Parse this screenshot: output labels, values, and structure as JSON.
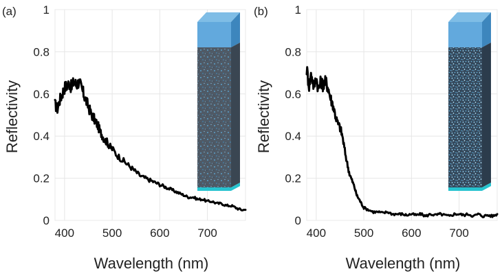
{
  "chart_data": [
    {
      "type": "line",
      "panel_label": "(a)",
      "xlabel": "Wavelength (nm)",
      "ylabel": "Reflectivity",
      "xlim": [
        380,
        780
      ],
      "ylim": [
        0,
        1
      ],
      "xticks": [
        "400",
        "500",
        "600",
        "700"
      ],
      "yticks": [
        "0",
        "0.2",
        "0.4",
        "0.6",
        "0.8",
        "1"
      ],
      "grid": true,
      "inset": "sparse-nanostructured-column",
      "series": [
        {
          "name": "reflectivity",
          "x": [
            380,
            385,
            390,
            395,
            400,
            405,
            410,
            415,
            420,
            425,
            430,
            435,
            440,
            445,
            450,
            455,
            460,
            465,
            470,
            475,
            480,
            485,
            490,
            495,
            500,
            510,
            520,
            530,
            540,
            550,
            560,
            570,
            580,
            590,
            600,
            610,
            620,
            630,
            640,
            650,
            660,
            670,
            680,
            690,
            700,
            710,
            720,
            730,
            740,
            750,
            760,
            770,
            780
          ],
          "y": [
            0.55,
            0.53,
            0.57,
            0.6,
            0.63,
            0.64,
            0.65,
            0.63,
            0.66,
            0.64,
            0.66,
            0.63,
            0.6,
            0.57,
            0.54,
            0.51,
            0.49,
            0.47,
            0.45,
            0.42,
            0.4,
            0.38,
            0.37,
            0.35,
            0.34,
            0.31,
            0.29,
            0.27,
            0.25,
            0.23,
            0.21,
            0.2,
            0.19,
            0.18,
            0.17,
            0.16,
            0.15,
            0.14,
            0.13,
            0.12,
            0.11,
            0.11,
            0.1,
            0.1,
            0.09,
            0.09,
            0.08,
            0.08,
            0.07,
            0.07,
            0.06,
            0.05,
            0.05
          ]
        }
      ]
    },
    {
      "type": "line",
      "panel_label": "(b)",
      "xlabel": "Wavelength (nm)",
      "ylabel": "Reflectivity",
      "xlim": [
        380,
        780
      ],
      "ylim": [
        0,
        1
      ],
      "xticks": [
        "400",
        "500",
        "600",
        "700"
      ],
      "yticks": [
        "0",
        "0.2",
        "0.4",
        "0.6",
        "0.8",
        "1"
      ],
      "grid": true,
      "inset": "dense-nanostructured-column",
      "series": [
        {
          "name": "reflectivity",
          "x": [
            380,
            385,
            390,
            395,
            400,
            405,
            410,
            415,
            420,
            425,
            430,
            435,
            440,
            445,
            450,
            455,
            460,
            465,
            470,
            475,
            480,
            485,
            490,
            495,
            500,
            510,
            520,
            530,
            540,
            550,
            560,
            570,
            580,
            590,
            600,
            610,
            620,
            630,
            640,
            650,
            660,
            670,
            680,
            690,
            700,
            710,
            720,
            730,
            740,
            750,
            760,
            770,
            780
          ],
          "y": [
            0.72,
            0.64,
            0.7,
            0.63,
            0.68,
            0.62,
            0.66,
            0.64,
            0.66,
            0.63,
            0.58,
            0.55,
            0.5,
            0.46,
            0.44,
            0.4,
            0.33,
            0.27,
            0.22,
            0.19,
            0.16,
            0.12,
            0.1,
            0.08,
            0.06,
            0.05,
            0.04,
            0.04,
            0.035,
            0.04,
            0.03,
            0.03,
            0.03,
            0.025,
            0.03,
            0.025,
            0.03,
            0.02,
            0.03,
            0.025,
            0.03,
            0.025,
            0.02,
            0.03,
            0.03,
            0.025,
            0.03,
            0.02,
            0.03,
            0.02,
            0.025,
            0.02,
            0.03
          ]
        }
      ]
    }
  ]
}
